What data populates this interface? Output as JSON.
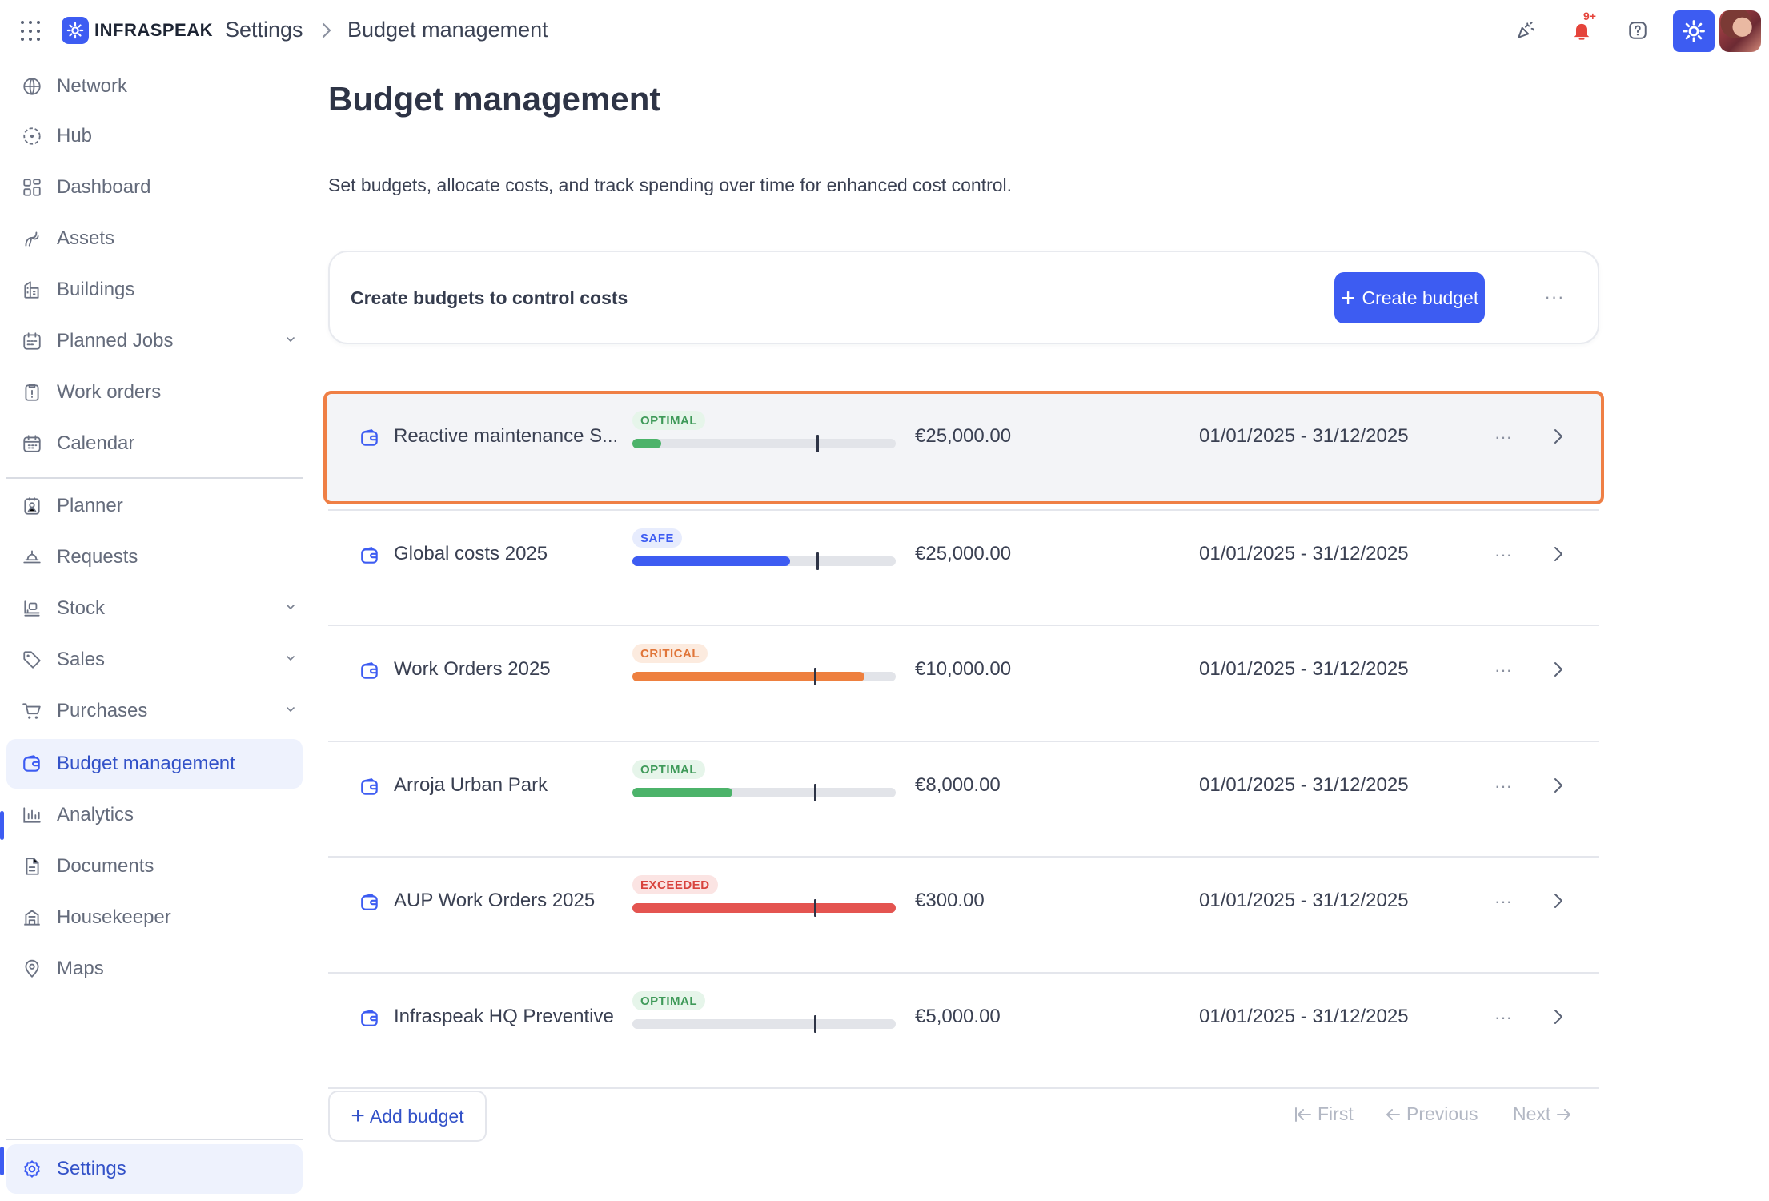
{
  "header": {
    "brand": "INFRASPEAK",
    "breadcrumb_root": "Settings",
    "breadcrumb_current": "Budget management",
    "notifications_badge": "9+"
  },
  "sidebar": {
    "items": [
      {
        "label": "Network",
        "icon": "globe-icon"
      },
      {
        "label": "Hub",
        "icon": "hub-icon"
      },
      {
        "label": "Dashboard",
        "icon": "dashboard-icon"
      },
      {
        "label": "Assets",
        "icon": "assets-icon"
      },
      {
        "label": "Buildings",
        "icon": "building-icon"
      },
      {
        "label": "Planned Jobs",
        "icon": "planned-jobs-icon",
        "expandable": true
      },
      {
        "label": "Work orders",
        "icon": "clipboard-icon"
      },
      {
        "label": "Calendar",
        "icon": "calendar-icon"
      },
      {
        "label": "Planner",
        "icon": "planner-icon"
      },
      {
        "label": "Requests",
        "icon": "requests-icon"
      },
      {
        "label": "Stock",
        "icon": "stock-icon",
        "expandable": true
      },
      {
        "label": "Sales",
        "icon": "tag-icon",
        "expandable": true
      },
      {
        "label": "Purchases",
        "icon": "cart-icon",
        "expandable": true
      },
      {
        "label": "Budget management",
        "icon": "wallet-icon",
        "active": true
      },
      {
        "label": "Analytics",
        "icon": "analytics-icon"
      },
      {
        "label": "Documents",
        "icon": "document-icon"
      },
      {
        "label": "Housekeeper",
        "icon": "housekeeper-icon"
      },
      {
        "label": "Maps",
        "icon": "map-pin-icon"
      }
    ],
    "settings_label": "Settings"
  },
  "main": {
    "title": "Budget management",
    "description": "Set budgets, allocate costs, and track spending over time for enhanced cost control.",
    "create_card_title": "Create budgets to control costs",
    "create_button": "Create budget",
    "add_button": "Add budget",
    "pagination": {
      "first": "First",
      "previous": "Previous",
      "next": "Next"
    }
  },
  "budgets": [
    {
      "name": "Reactive maintenance S...",
      "status": "OPTIMAL",
      "spent_fraction": 0.11,
      "time_marker_fraction": 0.7,
      "amount": "€25,000.00",
      "period": "01/01/2025 - 31/12/2025",
      "highlighted": true
    },
    {
      "name": "Global costs 2025",
      "status": "SAFE",
      "spent_fraction": 0.6,
      "time_marker_fraction": 0.7,
      "amount": "€25,000.00",
      "period": "01/01/2025 - 31/12/2025"
    },
    {
      "name": "Work Orders 2025",
      "status": "CRITICAL",
      "spent_fraction": 0.88,
      "time_marker_fraction": 0.69,
      "amount": "€10,000.00",
      "period": "01/01/2025 - 31/12/2025"
    },
    {
      "name": "Arroja Urban Park",
      "status": "OPTIMAL",
      "spent_fraction": 0.38,
      "time_marker_fraction": 0.69,
      "amount": "€8,000.00",
      "period": "01/01/2025 - 31/12/2025"
    },
    {
      "name": "AUP Work Orders 2025",
      "status": "EXCEEDED",
      "spent_fraction": 1.0,
      "time_marker_fraction": 0.69,
      "amount": "€300.00",
      "period": "01/01/2025 - 31/12/2025"
    },
    {
      "name": "Infraspeak HQ Preventive",
      "status": "OPTIMAL",
      "spent_fraction": 0.0,
      "time_marker_fraction": 0.69,
      "amount": "€5,000.00",
      "period": "01/01/2025 - 31/12/2025"
    }
  ],
  "status_colors": {
    "OPTIMAL": {
      "text": "#3f9a59",
      "bg": "#e6f5ea",
      "bar": "#4cb36a"
    },
    "SAFE": {
      "text": "#3d5cf2",
      "bg": "#e7ecfd",
      "bar": "#3d5cf2"
    },
    "CRITICAL": {
      "text": "#e0763a",
      "bg": "#fcebdf",
      "bar": "#ee803f"
    },
    "EXCEEDED": {
      "text": "#d8433d",
      "bg": "#fbe4e3",
      "bar": "#e45450"
    }
  },
  "colors": {
    "accent": "#3d5cf2",
    "highlight_border": "#ef7f45"
  }
}
